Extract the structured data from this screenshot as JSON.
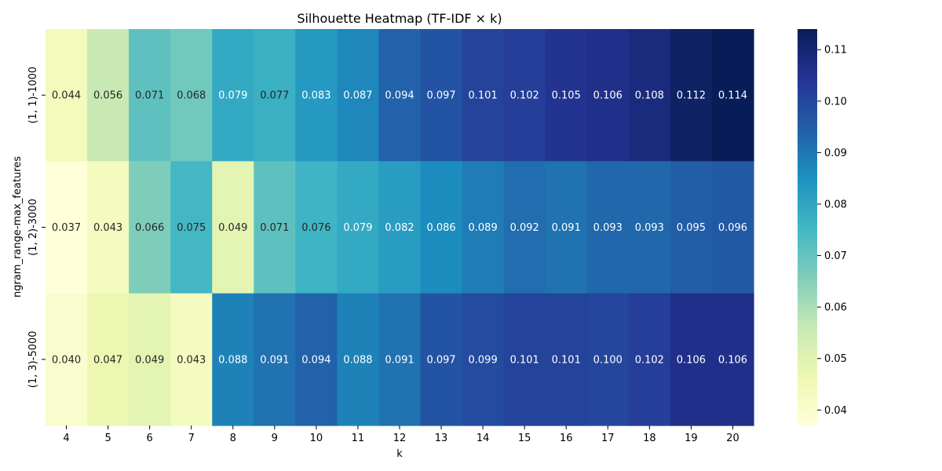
{
  "chart_data": {
    "type": "heatmap",
    "title": "Silhouette Heatmap (TF-IDF × k)",
    "xlabel": "k",
    "ylabel": "ngram_range-max_features",
    "x_categories": [
      "4",
      "5",
      "6",
      "7",
      "8",
      "9",
      "10",
      "11",
      "12",
      "13",
      "14",
      "15",
      "16",
      "17",
      "18",
      "19",
      "20"
    ],
    "y_categories": [
      "(1, 1)-1000",
      "(1, 2)-3000",
      "(1, 3)-5000"
    ],
    "values": [
      [
        0.044,
        0.056,
        0.071,
        0.068,
        0.079,
        0.077,
        0.083,
        0.087,
        0.094,
        0.097,
        0.101,
        0.102,
        0.105,
        0.106,
        0.108,
        0.112,
        0.114
      ],
      [
        0.037,
        0.043,
        0.066,
        0.075,
        0.049,
        0.071,
        0.076,
        0.079,
        0.082,
        0.086,
        0.089,
        0.092,
        0.091,
        0.093,
        0.093,
        0.095,
        0.096
      ],
      [
        0.04,
        0.047,
        0.049,
        0.043,
        0.088,
        0.091,
        0.094,
        0.088,
        0.091,
        0.097,
        0.099,
        0.101,
        0.101,
        0.1,
        0.102,
        0.106,
        0.106
      ]
    ],
    "value_labels": [
      [
        "0.044",
        "0.056",
        "0.071",
        "0.068",
        "0.079",
        "0.077",
        "0.083",
        "0.087",
        "0.094",
        "0.097",
        "0.101",
        "0.102",
        "0.105",
        "0.106",
        "0.108",
        "0.112",
        "0.114"
      ],
      [
        "0.037",
        "0.043",
        "0.066",
        "0.075",
        "0.049",
        "0.071",
        "0.076",
        "0.079",
        "0.082",
        "0.086",
        "0.089",
        "0.092",
        "0.091",
        "0.093",
        "0.093",
        "0.095",
        "0.096"
      ],
      [
        "0.040",
        "0.047",
        "0.049",
        "0.043",
        "0.088",
        "0.091",
        "0.094",
        "0.088",
        "0.091",
        "0.097",
        "0.099",
        "0.101",
        "0.101",
        "0.100",
        "0.102",
        "0.106",
        "0.106"
      ]
    ],
    "colormap": "YlGnBu",
    "color_range": [
      0.037,
      0.114
    ],
    "colorbar_ticks": [
      "0.04",
      "0.05",
      "0.06",
      "0.07",
      "0.08",
      "0.09",
      "0.10",
      "0.11"
    ]
  }
}
